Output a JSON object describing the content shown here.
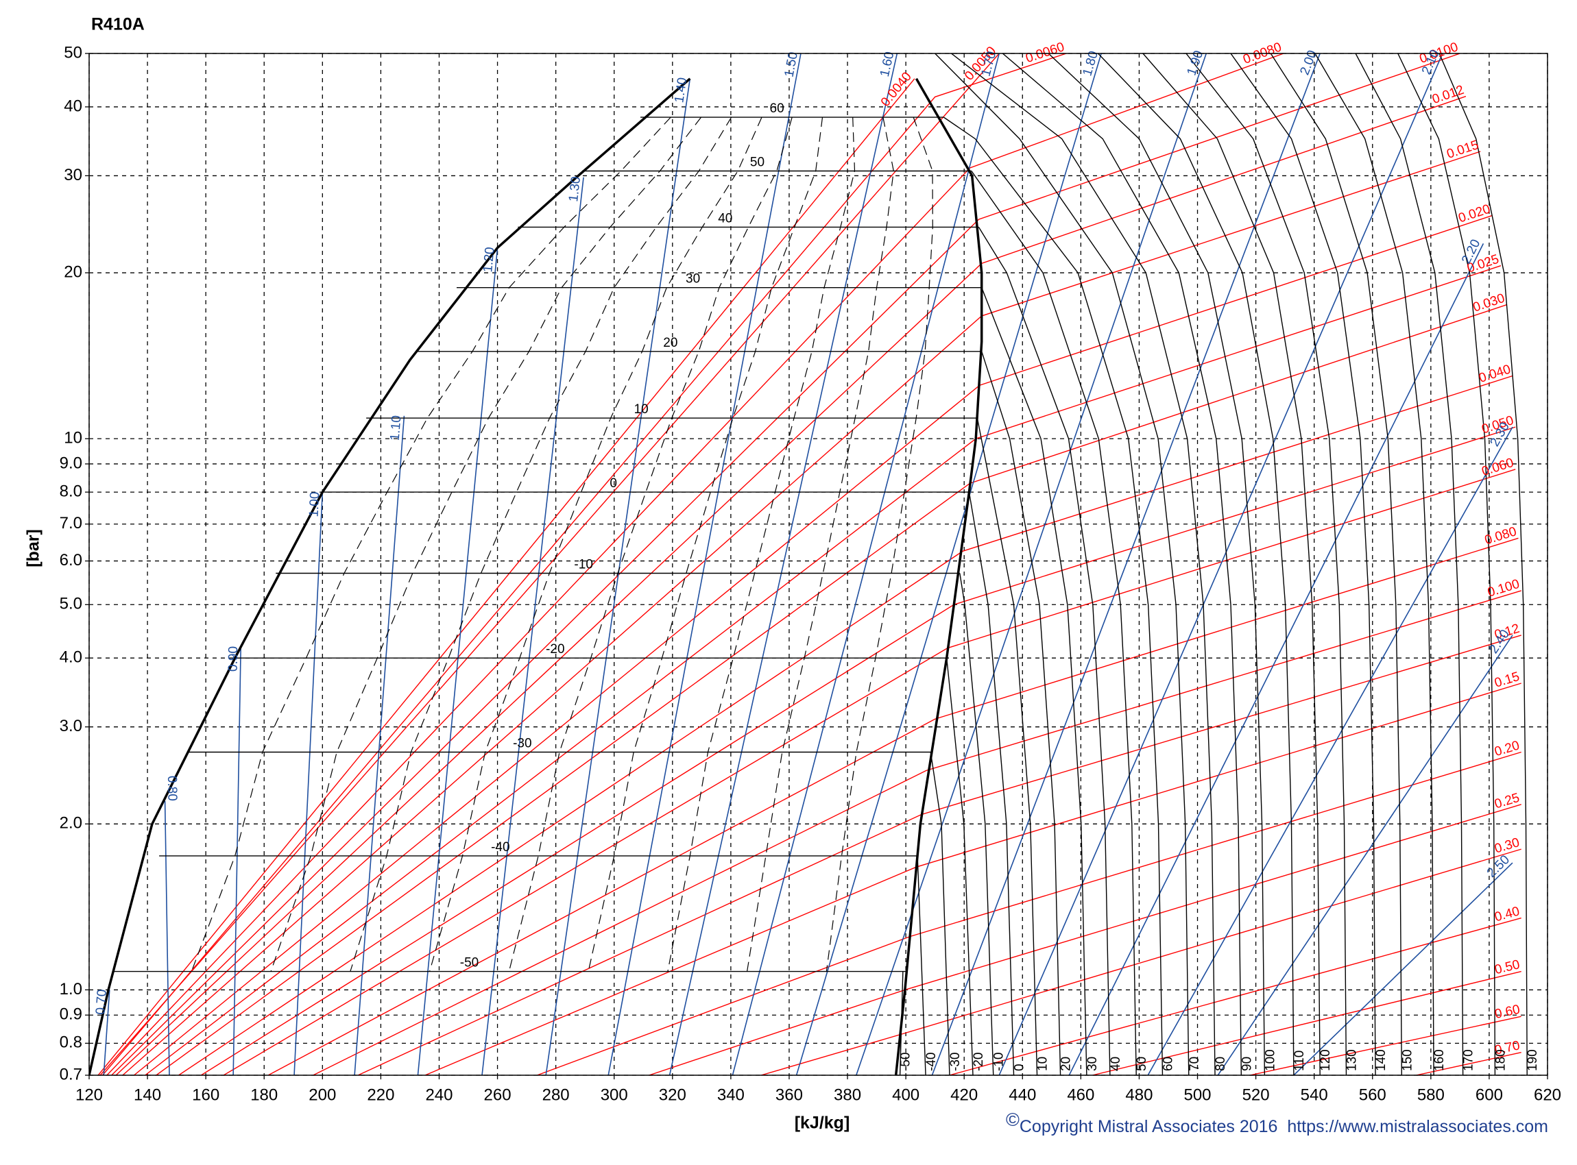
{
  "chart_data": {
    "type": "line",
    "title": "R410A",
    "x_label": "[kJ/kg]",
    "y_label": "[bar]",
    "copyright_symbol": "©",
    "copyright": "Copyright Mistral Associates 2016  https://www.mistralassociates.com",
    "xlim": [
      120,
      620
    ],
    "xticks": [
      120,
      140,
      160,
      180,
      200,
      220,
      240,
      260,
      280,
      300,
      320,
      340,
      360,
      380,
      400,
      420,
      440,
      460,
      480,
      500,
      520,
      540,
      560,
      580,
      600,
      620
    ],
    "ylim": [
      0.7,
      50
    ],
    "yscale": "log",
    "yticks": [
      0.7,
      0.8,
      0.9,
      {
        "value": 1,
        "label": "1.0"
      },
      {
        "value": 2,
        "label": "2.0"
      },
      {
        "value": 3,
        "label": "3.0"
      },
      {
        "value": 4,
        "label": "4.0"
      },
      {
        "value": 5,
        "label": "5.0"
      },
      {
        "value": 6,
        "label": "6.0"
      },
      {
        "value": 7,
        "label": "7.0"
      },
      {
        "value": 8,
        "label": "8.0"
      },
      {
        "value": 9,
        "label": "9.0"
      },
      10,
      20,
      30,
      40,
      50
    ],
    "grid": true,
    "saturation": {
      "color": "#000000",
      "liquid": {
        "x": [
          120,
          126.6,
          141.6,
          170,
          200,
          230,
          260,
          287.7,
          326
        ],
        "values": [
          0.7,
          1,
          2,
          4,
          8,
          13.9,
          22.2,
          30,
          45
        ]
      },
      "vapor": {
        "x": [
          396.6,
          399.7,
          405,
          414,
          416.5,
          421.7,
          424,
          426,
          426,
          422.7,
          403.6
        ],
        "values": [
          0.7,
          1,
          2,
          4,
          5,
          8,
          10,
          15,
          20,
          30,
          45
        ]
      }
    },
    "isotherm_color": "#000000",
    "dome_isotherms": [
      {
        "label": "60",
        "x": [
          309,
          413
        ],
        "values": [
          38.3,
          38.3
        ]
      },
      {
        "label": "50",
        "x": [
          289,
          422.5
        ],
        "values": [
          30.6,
          30.6
        ]
      },
      {
        "label": "40",
        "x": [
          267,
          425
        ],
        "values": [
          24.2,
          24.2
        ]
      },
      {
        "label": "30",
        "x": [
          246,
          426
        ],
        "values": [
          18.8,
          18.8
        ]
      },
      {
        "label": "20",
        "x": [
          232,
          426
        ],
        "values": [
          14.4,
          14.4
        ]
      },
      {
        "label": "10",
        "x": [
          215,
          424.5
        ],
        "values": [
          10.9,
          10.9
        ]
      },
      {
        "label": "0",
        "x": [
          200,
          421.7
        ],
        "values": [
          8,
          8
        ]
      },
      {
        "label": "-10",
        "x": [
          184,
          418.5
        ],
        "values": [
          5.7,
          5.7
        ]
      },
      {
        "label": "-20",
        "x": [
          170,
          414
        ],
        "values": [
          4,
          4
        ]
      },
      {
        "label": "-30",
        "x": [
          154,
          408.5
        ],
        "values": [
          2.7,
          2.7
        ]
      },
      {
        "label": "-40",
        "x": [
          144,
          404
        ],
        "values": [
          1.75,
          1.75
        ]
      },
      {
        "label": "-50",
        "x": [
          127.9,
          400
        ],
        "values": [
          1.08,
          1.08
        ]
      }
    ],
    "isotherms": [
      {
        "label": "-50",
        "x": [
          398,
          399
        ],
        "values": [
          0.7,
          1.08
        ]
      },
      {
        "label": "-40",
        "x": [
          406.8,
          404
        ],
        "values": [
          0.7,
          1.75
        ]
      },
      {
        "label": "-30",
        "x": [
          415,
          412.2,
          408.5
        ],
        "values": [
          0.7,
          2,
          2.7
        ]
      },
      {
        "label": "-20",
        "x": [
          423,
          419.9,
          414
        ],
        "values": [
          0.7,
          2,
          4
        ]
      },
      {
        "label": "-10",
        "x": [
          430,
          427.2,
          420.2,
          418.5
        ],
        "values": [
          0.7,
          2,
          5,
          5.7
        ]
      },
      {
        "label": "0",
        "x": [
          437,
          434.5,
          428.2,
          421.7
        ],
        "values": [
          0.7,
          2,
          5,
          8
        ]
      },
      {
        "label": "10",
        "x": [
          445,
          442.7,
          437,
          424.5
        ],
        "values": [
          0.7,
          2,
          5,
          10.9
        ]
      },
      {
        "label": "20",
        "x": [
          453,
          451,
          445.8,
          435.6,
          426
        ],
        "values": [
          0.7,
          2,
          5,
          10,
          14.4
        ]
      },
      {
        "label": "30",
        "x": [
          462,
          460.1,
          455.4,
          446.3,
          426
        ],
        "values": [
          0.7,
          2,
          5,
          10,
          18.8
        ]
      },
      {
        "label": "40",
        "x": [
          470,
          468.3,
          464.1,
          455.8,
          434.6,
          425
        ],
        "values": [
          0.7,
          2,
          5,
          10,
          20,
          24.2
        ]
      },
      {
        "label": "50",
        "x": [
          479,
          477.5,
          473.6,
          466.1,
          447,
          422.5
        ],
        "values": [
          0.7,
          2,
          5,
          10,
          20,
          30.6
        ]
      },
      {
        "label": "60",
        "x": [
          488,
          486.6,
          483.1,
          476.3,
          459,
          423.8,
          413
        ],
        "values": [
          0.7,
          2,
          5,
          10,
          20,
          35,
          38.3
        ]
      },
      {
        "label": "70",
        "x": [
          497,
          495.8,
          492.6,
          486.5,
          470.8,
          439,
          410
        ],
        "values": [
          0.7,
          2,
          5,
          10,
          20,
          35,
          50
        ]
      },
      {
        "label": "80",
        "x": [
          506,
          504.9,
          502,
          496.5,
          482.3,
          453.5,
          415.6
        ],
        "values": [
          0.7,
          2,
          5,
          10,
          20,
          35,
          50
        ]
      },
      {
        "label": "90",
        "x": [
          515,
          514,
          511.4,
          506.4,
          493.6,
          467.5,
          433.2
        ],
        "values": [
          0.7,
          2,
          5,
          10,
          20,
          35,
          50
        ]
      },
      {
        "label": "100",
        "x": [
          523,
          522.1,
          519.7,
          515.2,
          503.6,
          480,
          448.9
        ],
        "values": [
          0.7,
          2,
          5,
          10,
          20,
          35,
          50
        ]
      },
      {
        "label": "110",
        "x": [
          533,
          532.2,
          530.1,
          525.9,
          515.4,
          494.1,
          465.9
        ],
        "values": [
          0.7,
          2,
          5,
          10,
          20,
          35,
          50
        ]
      },
      {
        "label": "120",
        "x": [
          542,
          541.2,
          539.3,
          535.6,
          526.1,
          506.8,
          481.3
        ],
        "values": [
          0.7,
          2,
          5,
          10,
          20,
          35,
          50
        ]
      },
      {
        "label": "130",
        "x": [
          551,
          550.3,
          548.6,
          545.2,
          536.6,
          519.1,
          496.1
        ],
        "values": [
          0.7,
          2,
          5,
          10,
          20,
          35,
          50
        ]
      },
      {
        "label": "140",
        "x": [
          561,
          560.4,
          558.8,
          555.8,
          548,
          532.2,
          511.4
        ],
        "values": [
          0.7,
          2,
          5,
          10,
          20,
          35,
          50
        ]
      },
      {
        "label": "150",
        "x": [
          570,
          569.4,
          568,
          565.3,
          558.2,
          543.9,
          525.1
        ],
        "values": [
          0.7,
          2,
          5,
          10,
          20,
          35,
          50
        ]
      },
      {
        "label": "160",
        "x": [
          581,
          580.5,
          579.2,
          576.7,
          570.3,
          557.4,
          540.3
        ],
        "values": [
          0.7,
          2,
          5,
          10,
          20,
          35,
          50
        ]
      },
      {
        "label": "170",
        "x": [
          591,
          590.5,
          589.4,
          587.1,
          581.4,
          569.6,
          554.2
        ],
        "values": [
          0.7,
          2,
          5,
          10,
          20,
          35,
          50
        ]
      },
      {
        "label": "180",
        "x": [
          602,
          601.6,
          600.5,
          598.5,
          593.3,
          582.7,
          568.7
        ],
        "values": [
          0.7,
          2,
          5,
          10,
          20,
          35,
          50
        ]
      },
      {
        "label": "190",
        "x": [
          613,
          612.6,
          611.7,
          609.8,
          605.1,
          595.5,
          582.9
        ],
        "values": [
          0.7,
          2,
          5,
          10,
          20,
          35,
          50
        ]
      }
    ],
    "isentrope_color": "#1f4f9f",
    "isentropes": [
      {
        "label": "0.70",
        "x": [
          125,
          127
        ],
        "values": [
          0.7,
          1
        ]
      },
      {
        "label": "0.80",
        "x": [
          147.5,
          146
        ],
        "values": [
          0.7,
          2.2
        ]
      },
      {
        "label": "0.90",
        "x": [
          169.4,
          172
        ],
        "values": [
          0.7,
          4.2
        ]
      },
      {
        "label": "1.00",
        "x": [
          190.3,
          200
        ],
        "values": [
          0.7,
          8
        ]
      },
      {
        "label": "1.10",
        "x": [
          211,
          228
        ],
        "values": [
          0.7,
          11
        ]
      },
      {
        "label": "1.20",
        "x": [
          232.7,
          260
        ],
        "values": [
          0.7,
          22.2
        ]
      },
      {
        "label": "1.30",
        "x": [
          254.7,
          289.5
        ],
        "values": [
          0.7,
          29.8
        ]
      },
      {
        "label": "1.40",
        "x": [
          276.6,
          326
        ],
        "values": [
          0.7,
          45
        ]
      },
      {
        "label": "1.50",
        "x": [
          298,
          364
        ],
        "values": [
          0.7,
          50
        ]
      },
      {
        "label": "1.60",
        "x": [
          319,
          397
        ],
        "values": [
          0.7,
          50
        ]
      },
      {
        "label": "1.70",
        "x": [
          340.6,
          432
        ],
        "values": [
          0.7,
          50
        ]
      },
      {
        "label": "1.80",
        "x": [
          362.5,
          467
        ],
        "values": [
          0.7,
          50
        ]
      },
      {
        "label": "1.90",
        "x": [
          383,
          503
        ],
        "values": [
          0.7,
          50
        ]
      },
      {
        "label": "2.00",
        "x": [
          409,
          542
        ],
        "values": [
          0.7,
          50
        ]
      },
      {
        "label": "2.10",
        "x": [
          432,
          584
        ],
        "values": [
          0.7,
          50
        ]
      },
      {
        "label": "2.20",
        "x": [
          456,
          598
        ],
        "values": [
          0.7,
          22.6
        ]
      },
      {
        "label": "2.30",
        "x": [
          483,
          608
        ],
        "values": [
          0.7,
          10.5
        ]
      },
      {
        "label": "2.40",
        "x": [
          507,
          608
        ],
        "values": [
          0.7,
          4.4
        ]
      },
      {
        "label": "2.50",
        "x": [
          533,
          608
        ],
        "values": [
          0.7,
          1.7
        ]
      }
    ],
    "isochore_color": "#ff0000",
    "isochores": [
      {
        "label": "0.0040",
        "x": [
          123.1,
          403
        ],
        "values": [
          0.7,
          45
        ]
      },
      {
        "label": "0.0050",
        "x": [
          123.8,
          432
        ],
        "values": [
          0.7,
          50
        ]
      },
      {
        "label": "0.0060",
        "x": [
          124.6,
          410,
          455
        ],
        "values": [
          0.7,
          41.7,
          50
        ]
      },
      {
        "label": "0.0080",
        "x": [
          126.1,
          422,
          529.5
        ],
        "values": [
          0.7,
          31,
          50
        ]
      },
      {
        "label": "0.0100",
        "x": [
          127.7,
          425,
          590
        ],
        "values": [
          0.7,
          25,
          50
        ]
      },
      {
        "label": "0.012",
        "x": [
          129.2,
          426,
          592
        ],
        "values": [
          0.7,
          20.8,
          41.8
        ]
      },
      {
        "label": "0.015",
        "x": [
          131.5,
          426,
          597
        ],
        "values": [
          0.7,
          16.7,
          33.2
        ]
      },
      {
        "label": "0.020",
        "x": [
          135.4,
          425.3,
          601
        ],
        "values": [
          0.7,
          12.5,
          25.4
        ]
      },
      {
        "label": "0.025",
        "x": [
          139.2,
          424,
          604
        ],
        "values": [
          0.7,
          10,
          20.6
        ]
      },
      {
        "label": "0.030",
        "x": [
          143,
          422,
          606
        ],
        "values": [
          0.7,
          8.3,
          17.5
        ]
      },
      {
        "label": "0.040",
        "x": [
          150.7,
          419.5,
          608
        ],
        "values": [
          0.7,
          6.25,
          13
        ]
      },
      {
        "label": "0.050",
        "x": [
          158.4,
          416.5,
          609
        ],
        "values": [
          0.7,
          5,
          10.5
        ]
      },
      {
        "label": "0.060",
        "x": [
          166.1,
          414.3,
          609
        ],
        "values": [
          0.7,
          4.17,
          8.8
        ]
      },
      {
        "label": "0.080",
        "x": [
          181.4,
          410,
          610
        ],
        "values": [
          0.7,
          3.1,
          6.6
        ]
      },
      {
        "label": "0.100",
        "x": [
          196.8,
          407,
          611
        ],
        "values": [
          0.7,
          2.5,
          5.3
        ]
      },
      {
        "label": "0.12",
        "x": [
          212.2,
          405.3,
          611
        ],
        "values": [
          0.7,
          2.08,
          4.4
        ]
      },
      {
        "label": "0.15",
        "x": [
          235.2,
          403.5,
          611
        ],
        "values": [
          0.7,
          1.67,
          3.6
        ]
      },
      {
        "label": "0.20",
        "x": [
          273.6,
          401.5,
          611
        ],
        "values": [
          0.7,
          1.25,
          2.7
        ]
      },
      {
        "label": "0.25",
        "x": [
          312,
          399.7,
          611
        ],
        "values": [
          0.7,
          1,
          2.17
        ]
      },
      {
        "label": "0.30",
        "x": [
          350.4,
          398.2,
          611
        ],
        "values": [
          0.7,
          0.83,
          1.8
        ]
      },
      {
        "label": "0.40",
        "x": [
          415,
          611
        ],
        "values": [
          0.7,
          1.35
        ]
      },
      {
        "label": "0.50",
        "x": [
          464,
          611
        ],
        "values": [
          0.7,
          1.08
        ]
      },
      {
        "label": "0.60",
        "x": [
          518,
          611
        ],
        "values": [
          0.7,
          0.895
        ]
      },
      {
        "label": "0.70",
        "x": [
          575,
          611
        ],
        "values": [
          0.7,
          0.77
        ]
      }
    ]
  }
}
